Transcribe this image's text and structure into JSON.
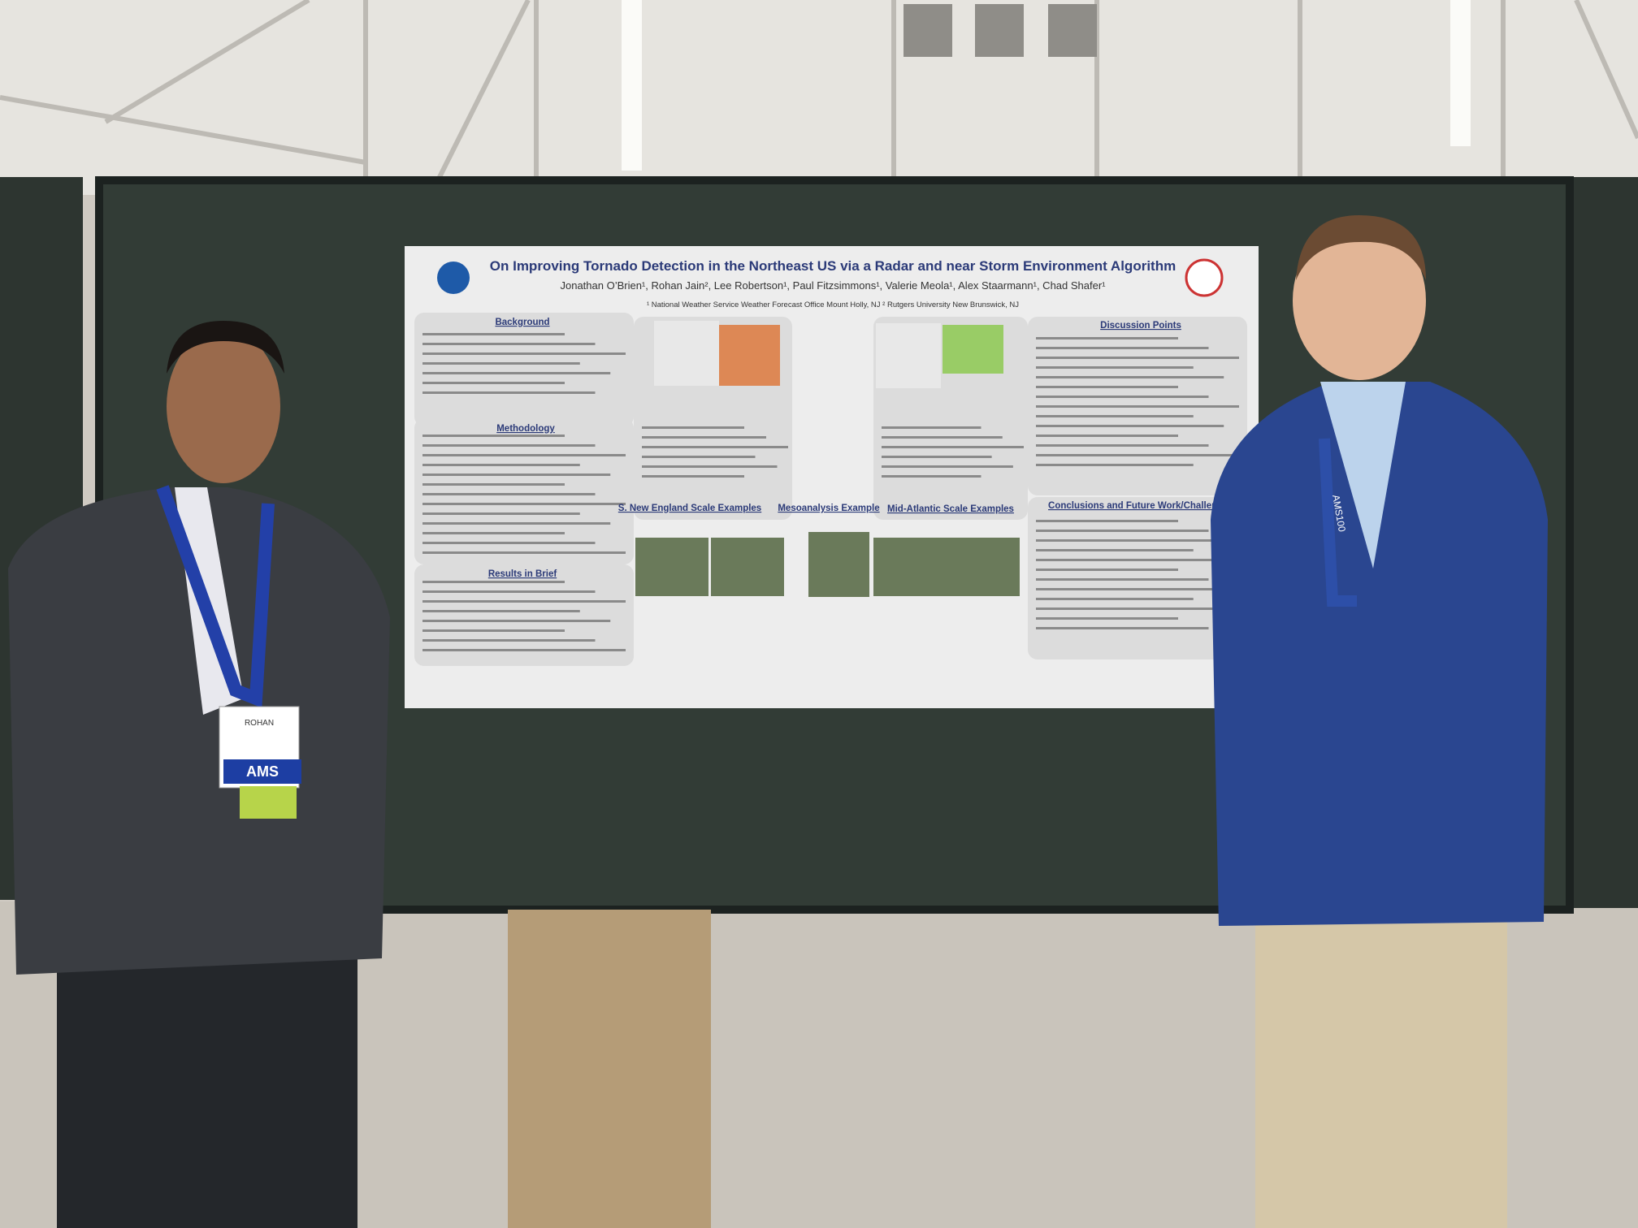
{
  "poster": {
    "title": "On Improving Tornado Detection in the Northeast US via a Radar and near Storm Environment Algorithm",
    "authors": "Jonathan O’Brien¹, Rohan Jain², Lee Robertson¹, Paul Fitzsimmons¹, Valerie Meola¹, Alex Staarmann¹, Chad Shafer¹",
    "affiliations": "¹ National Weather Service Weather Forecast Office Mount Holly, NJ ² Rutgers University New Brunswick, NJ",
    "sections": [
      "Background",
      "Methodology",
      "Results in Brief",
      "Discussion Points",
      "Conclusions and Future Work/Challenges",
      "S. New England Scale Examples",
      "Mesoanalysis Example",
      "Mid-Atlantic Scale Examples"
    ]
  },
  "badge": {
    "name": "ROHAN",
    "org": "AMS"
  },
  "lanyard": "AMS100"
}
